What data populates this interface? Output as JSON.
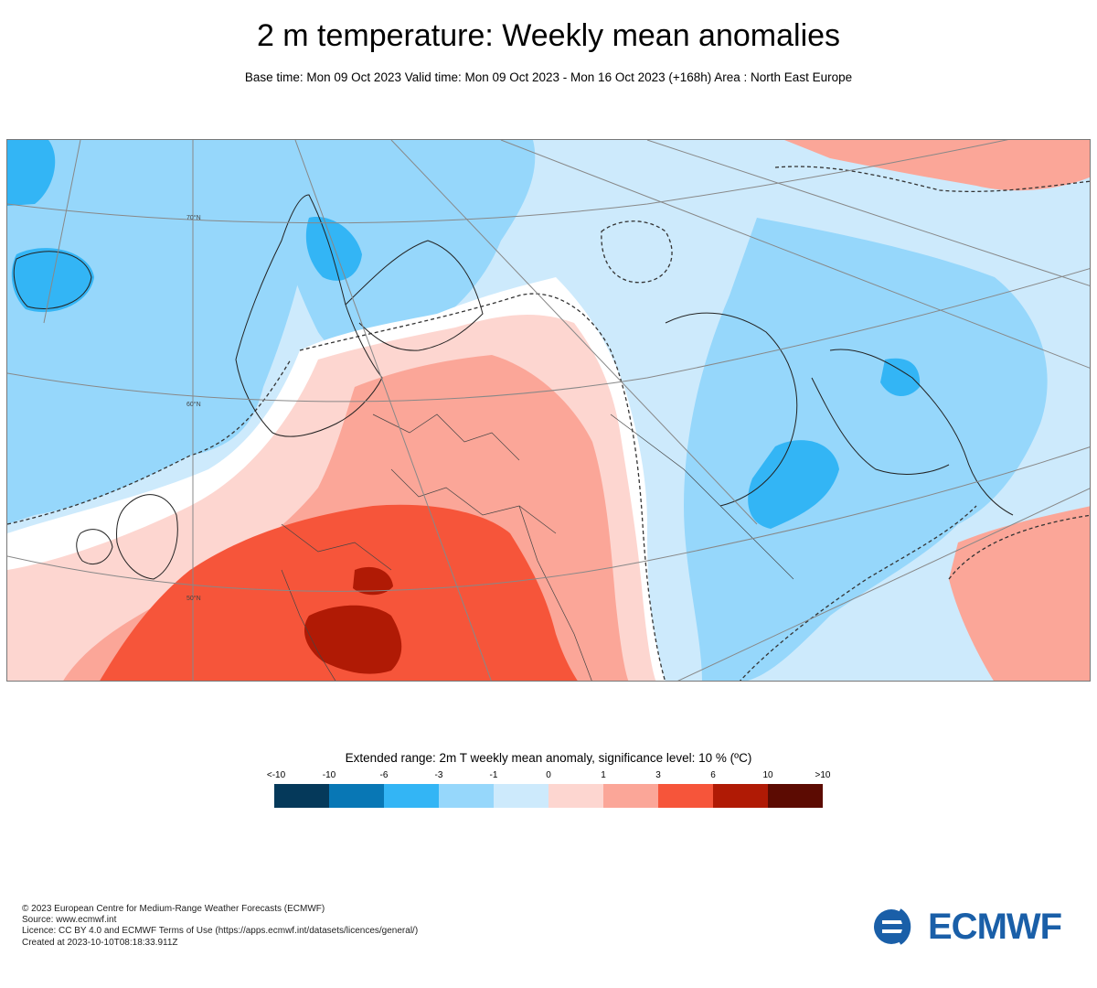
{
  "header": {
    "title": "2 m temperature: Weekly mean anomalies",
    "subtitle": "Base time: Mon 09 Oct 2023 Valid time: Mon 09 Oct 2023 - Mon 16 Oct 2023 (+168h) Area : North East Europe"
  },
  "map": {
    "gridline_labels": [
      "70°N",
      "60°N",
      "50°N"
    ]
  },
  "legend": {
    "title": "Extended range: 2m T weekly mean anomaly, significance level: 10 % (ºC)",
    "labels": [
      "<-10",
      "-10",
      "-6",
      "-3",
      "-1",
      "0",
      "1",
      "3",
      "6",
      "10",
      ">10"
    ],
    "colors": [
      "#05395a",
      "#0877b5",
      "#33b5f5",
      "#96d7fb",
      "#cdeafc",
      "#ffffff",
      "#fdd6d0",
      "#fba698",
      "#f6553a",
      "#b01a05",
      "#5c0b02"
    ]
  },
  "footer": {
    "lines": [
      "© 2023 European Centre for Medium-Range Weather Forecasts (ECMWF)",
      "Source: www.ecmwf.int",
      "Licence: CC BY 4.0 and ECMWF Terms of Use (https://apps.ecmwf.int/datasets/licences/general/)",
      "Created at 2023-10-10T08:18:33.911Z"
    ],
    "logo_text": "ECMWF"
  }
}
